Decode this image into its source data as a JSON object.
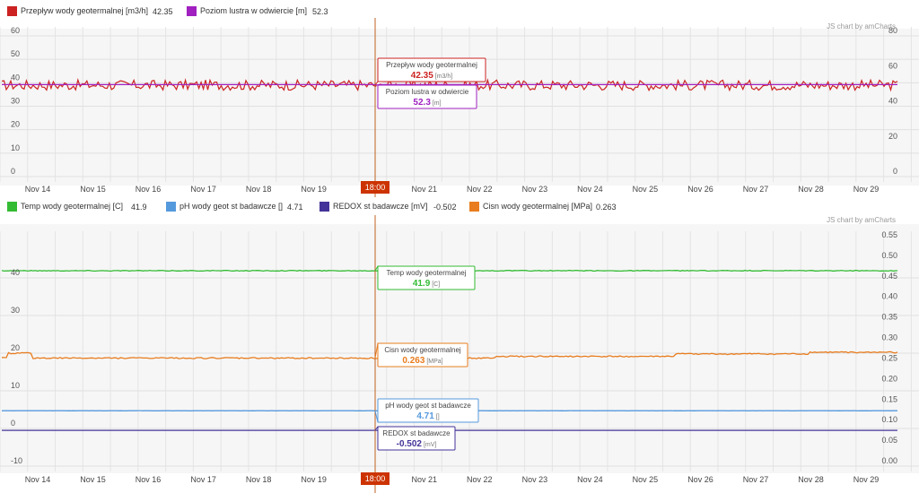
{
  "colors": {
    "flow": "#cc2222",
    "level": "#a020c0",
    "temp": "#33bb33",
    "ph": "#5599dd",
    "redox": "#443399",
    "pressure": "#e87c1e",
    "cursor": "#c06020",
    "cursor_badge": "#cc3300"
  },
  "credit": "JS chart by amCharts",
  "cursor_time": "18:00",
  "x_ticks": [
    "Nov 14",
    "Nov 15",
    "Nov 16",
    "Nov 17",
    "Nov 18",
    "Nov 19",
    "Nov 20",
    "Nov 21",
    "Nov 22",
    "Nov 23",
    "Nov 24",
    "Nov 25",
    "Nov 26",
    "Nov 27",
    "Nov 28",
    "Nov 29"
  ],
  "top_legend": [
    {
      "label": "Przepływ wody geotermalnej [m3/h]",
      "value": "42.35",
      "color": "#cc2222"
    },
    {
      "label": "Poziom lustra w odwiercie [m]",
      "value": "52.3",
      "color": "#a020c0"
    }
  ],
  "bottom_legend": [
    {
      "label": "Temp wody geotermalnej [C]",
      "value": "41.9",
      "color": "#33bb33"
    },
    {
      "label": "pH wody geot st badawcze []",
      "value": "4.71",
      "color": "#5599dd"
    },
    {
      "label": "REDOX st badawcze [mV]",
      "value": "-0.502",
      "color": "#443399"
    },
    {
      "label": "Cisn wody geotermalnej [MPa]",
      "value": "0.263",
      "color": "#e87c1e"
    }
  ],
  "chart_data": [
    {
      "type": "line",
      "title": "",
      "x_range": [
        "Nov 13 18:00",
        "Nov 30 00:00"
      ],
      "y_left": {
        "min": 0,
        "max": 60,
        "ticks": [
          0,
          10,
          20,
          30,
          40,
          50,
          60
        ]
      },
      "y_right": {
        "min": 0,
        "max": 80,
        "ticks": [
          0,
          20,
          40,
          60,
          80
        ]
      },
      "grid": true,
      "legend_position": "top",
      "cursor": {
        "time": "Nov 20 18:00"
      },
      "series": [
        {
          "name": "Przepływ wody geotermalnej",
          "unit": "m3/h",
          "axis": "left",
          "color": "#cc2222",
          "base": 39,
          "noise": 2.2,
          "cursor_value": "42.35"
        },
        {
          "name": "Poziom lustra w odwiercie",
          "unit": "m",
          "axis": "right",
          "color": "#a020c0",
          "base": 52.3,
          "noise": 0,
          "cursor_value": "52.3"
        }
      ],
      "balloons": [
        {
          "series": "Przepływ wody geotermalnej",
          "value": "42.35",
          "unit": "[m3/h]"
        },
        {
          "series": "Poziom lustra w odwiercie",
          "value": "52.3",
          "unit": "[m]"
        }
      ]
    },
    {
      "type": "line",
      "title": "",
      "x_range": [
        "Nov 13 18:00",
        "Nov 30 00:00"
      ],
      "y_left": {
        "min": -10,
        "max": 50,
        "ticks": [
          -10,
          0,
          10,
          20,
          30,
          40
        ]
      },
      "y_right": {
        "min": 0,
        "max": 0.55,
        "ticks": [
          "0.00",
          "0.05",
          "0.10",
          "0.15",
          "0.20",
          "0.25",
          "0.30",
          "0.35",
          "0.40",
          "0.45",
          "0.50",
          "0.55"
        ]
      },
      "grid": true,
      "legend_position": "top",
      "cursor": {
        "time": "Nov 20 18:00"
      },
      "series": [
        {
          "name": "Temp wody geotermalnej",
          "unit": "C",
          "axis": "left",
          "color": "#33bb33",
          "base": 41.9,
          "noise": 0.1,
          "cursor_value": "41.9"
        },
        {
          "name": "Cisn wody geotermalnej",
          "unit": "MPa",
          "axis": "right",
          "color": "#e87c1e",
          "base": 0.263,
          "noise": 0.0015,
          "cursor_value": "0.263"
        },
        {
          "name": "pH wody geot st badawcze",
          "unit": "",
          "axis": "left",
          "color": "#5599dd",
          "base": 4.71,
          "noise": 0.02,
          "cursor_value": "4.71"
        },
        {
          "name": "REDOX st badawcze",
          "unit": "mV",
          "axis": "left",
          "color": "#443399",
          "base": -0.502,
          "noise": 0,
          "cursor_value": "-0.502"
        }
      ],
      "balloons": [
        {
          "series": "Temp wody geotermalnej",
          "value": "41.9",
          "unit": "[C]"
        },
        {
          "series": "Cisn wody geotermalnej",
          "value": "0.263",
          "unit": "[MPa]"
        },
        {
          "series": "pH wody geot st badawcze",
          "value": "4.71",
          "unit": "[]"
        },
        {
          "series": "REDOX st badawcze",
          "value": "-0.502",
          "unit": "[mV]"
        }
      ]
    }
  ]
}
